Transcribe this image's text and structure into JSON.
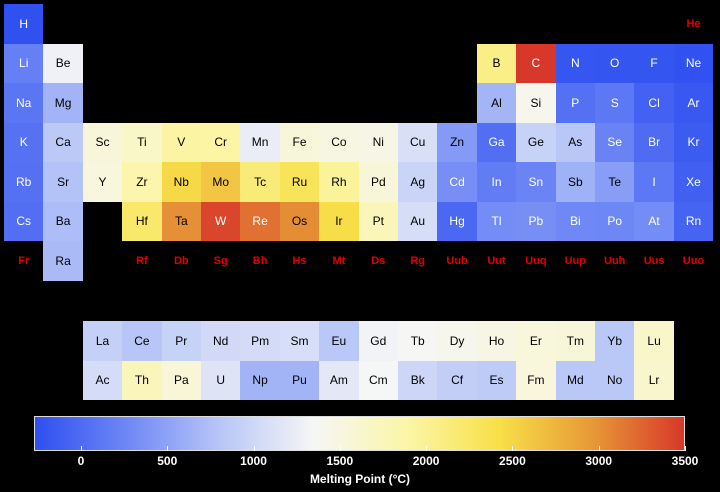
{
  "chart_data": {
    "type": "heatmap",
    "title": "",
    "colorbar": {
      "label": "Melting Point (°C)",
      "range": [
        -272,
        3500
      ],
      "ticks": [
        0,
        500,
        1000,
        1500,
        2000,
        2500,
        3000,
        3500
      ],
      "colors": [
        "#2e4ff0",
        "#6f88f5",
        "#b8c6f7",
        "#f6f6f6",
        "#fbf6a8",
        "#f8e049",
        "#e79a37",
        "#d7382a"
      ]
    },
    "no_data_color": "#e00000",
    "elements": [
      {
        "symbol": "H",
        "row": 1,
        "col": 1,
        "value": -259
      },
      {
        "symbol": "He",
        "row": 1,
        "col": 18,
        "value": null
      },
      {
        "symbol": "Li",
        "row": 2,
        "col": 1,
        "value": 181
      },
      {
        "symbol": "Be",
        "row": 2,
        "col": 2,
        "value": 1287
      },
      {
        "symbol": "B",
        "row": 2,
        "col": 13,
        "value": 2076
      },
      {
        "symbol": "C",
        "row": 2,
        "col": 14,
        "value": 3500
      },
      {
        "symbol": "N",
        "row": 2,
        "col": 15,
        "value": -210
      },
      {
        "symbol": "O",
        "row": 2,
        "col": 16,
        "value": -218
      },
      {
        "symbol": "F",
        "row": 2,
        "col": 17,
        "value": -220
      },
      {
        "symbol": "Ne",
        "row": 2,
        "col": 18,
        "value": -249
      },
      {
        "symbol": "Na",
        "row": 3,
        "col": 1,
        "value": 98
      },
      {
        "symbol": "Mg",
        "row": 3,
        "col": 2,
        "value": 650
      },
      {
        "symbol": "Al",
        "row": 3,
        "col": 13,
        "value": 660
      },
      {
        "symbol": "Si",
        "row": 3,
        "col": 14,
        "value": 1414
      },
      {
        "symbol": "P",
        "row": 3,
        "col": 15,
        "value": 44
      },
      {
        "symbol": "S",
        "row": 3,
        "col": 16,
        "value": 115
      },
      {
        "symbol": "Cl",
        "row": 3,
        "col": 17,
        "value": -102
      },
      {
        "symbol": "Ar",
        "row": 3,
        "col": 18,
        "value": -189
      },
      {
        "symbol": "K",
        "row": 4,
        "col": 1,
        "value": 63
      },
      {
        "symbol": "Ca",
        "row": 4,
        "col": 2,
        "value": 842
      },
      {
        "symbol": "Sc",
        "row": 4,
        "col": 3,
        "value": 1541
      },
      {
        "symbol": "Ti",
        "row": 4,
        "col": 4,
        "value": 1668
      },
      {
        "symbol": "V",
        "row": 4,
        "col": 5,
        "value": 1910
      },
      {
        "symbol": "Cr",
        "row": 4,
        "col": 6,
        "value": 1907
      },
      {
        "symbol": "Mn",
        "row": 4,
        "col": 7,
        "value": 1246
      },
      {
        "symbol": "Fe",
        "row": 4,
        "col": 8,
        "value": 1538
      },
      {
        "symbol": "Co",
        "row": 4,
        "col": 9,
        "value": 1495
      },
      {
        "symbol": "Ni",
        "row": 4,
        "col": 10,
        "value": 1455
      },
      {
        "symbol": "Cu",
        "row": 4,
        "col": 11,
        "value": 1085
      },
      {
        "symbol": "Zn",
        "row": 4,
        "col": 12,
        "value": 420
      },
      {
        "symbol": "Ga",
        "row": 4,
        "col": 13,
        "value": 30
      },
      {
        "symbol": "Ge",
        "row": 4,
        "col": 14,
        "value": 938
      },
      {
        "symbol": "As",
        "row": 4,
        "col": 15,
        "value": 817
      },
      {
        "symbol": "Se",
        "row": 4,
        "col": 16,
        "value": 221
      },
      {
        "symbol": "Br",
        "row": 4,
        "col": 17,
        "value": -7
      },
      {
        "symbol": "Kr",
        "row": 4,
        "col": 18,
        "value": -157
      },
      {
        "symbol": "Rb",
        "row": 5,
        "col": 1,
        "value": 39
      },
      {
        "symbol": "Sr",
        "row": 5,
        "col": 2,
        "value": 777
      },
      {
        "symbol": "Y",
        "row": 5,
        "col": 3,
        "value": 1526
      },
      {
        "symbol": "Zr",
        "row": 5,
        "col": 4,
        "value": 1855
      },
      {
        "symbol": "Nb",
        "row": 5,
        "col": 5,
        "value": 2477
      },
      {
        "symbol": "Mo",
        "row": 5,
        "col": 6,
        "value": 2623
      },
      {
        "symbol": "Tc",
        "row": 5,
        "col": 7,
        "value": 2157
      },
      {
        "symbol": "Ru",
        "row": 5,
        "col": 8,
        "value": 2334
      },
      {
        "symbol": "Rh",
        "row": 5,
        "col": 9,
        "value": 1964
      },
      {
        "symbol": "Pd",
        "row": 5,
        "col": 10,
        "value": 1555
      },
      {
        "symbol": "Ag",
        "row": 5,
        "col": 11,
        "value": 962
      },
      {
        "symbol": "Cd",
        "row": 5,
        "col": 12,
        "value": 321
      },
      {
        "symbol": "In",
        "row": 5,
        "col": 13,
        "value": 157
      },
      {
        "symbol": "Sn",
        "row": 5,
        "col": 14,
        "value": 232
      },
      {
        "symbol": "Sb",
        "row": 5,
        "col": 15,
        "value": 631
      },
      {
        "symbol": "Te",
        "row": 5,
        "col": 16,
        "value": 450
      },
      {
        "symbol": "I",
        "row": 5,
        "col": 17,
        "value": 114
      },
      {
        "symbol": "Xe",
        "row": 5,
        "col": 18,
        "value": -112
      },
      {
        "symbol": "Cs",
        "row": 6,
        "col": 1,
        "value": 28
      },
      {
        "symbol": "Ba",
        "row": 6,
        "col": 2,
        "value": 727
      },
      {
        "symbol": "Hf",
        "row": 6,
        "col": 4,
        "value": 2233
      },
      {
        "symbol": "Ta",
        "row": 6,
        "col": 5,
        "value": 3017
      },
      {
        "symbol": "W",
        "row": 6,
        "col": 6,
        "value": 3422
      },
      {
        "symbol": "Re",
        "row": 6,
        "col": 7,
        "value": 3186
      },
      {
        "symbol": "Os",
        "row": 6,
        "col": 8,
        "value": 3033
      },
      {
        "symbol": "Ir",
        "row": 6,
        "col": 9,
        "value": 2446
      },
      {
        "symbol": "Pt",
        "row": 6,
        "col": 10,
        "value": 1768
      },
      {
        "symbol": "Au",
        "row": 6,
        "col": 11,
        "value": 1064
      },
      {
        "symbol": "Hg",
        "row": 6,
        "col": 12,
        "value": -39
      },
      {
        "symbol": "Tl",
        "row": 6,
        "col": 13,
        "value": 304
      },
      {
        "symbol": "Pb",
        "row": 6,
        "col": 14,
        "value": 327
      },
      {
        "symbol": "Bi",
        "row": 6,
        "col": 15,
        "value": 271
      },
      {
        "symbol": "Po",
        "row": 6,
        "col": 16,
        "value": 254
      },
      {
        "symbol": "At",
        "row": 6,
        "col": 17,
        "value": 302
      },
      {
        "symbol": "Rn",
        "row": 6,
        "col": 18,
        "value": -71
      },
      {
        "symbol": "Fr",
        "row": 7,
        "col": 1,
        "value": null
      },
      {
        "symbol": "Ra",
        "row": 7,
        "col": 2,
        "value": 700
      },
      {
        "symbol": "Rf",
        "row": 7,
        "col": 4,
        "value": null
      },
      {
        "symbol": "Db",
        "row": 7,
        "col": 5,
        "value": null
      },
      {
        "symbol": "Sg",
        "row": 7,
        "col": 6,
        "value": null
      },
      {
        "symbol": "Bh",
        "row": 7,
        "col": 7,
        "value": null
      },
      {
        "symbol": "Hs",
        "row": 7,
        "col": 8,
        "value": null
      },
      {
        "symbol": "Mt",
        "row": 7,
        "col": 9,
        "value": null
      },
      {
        "symbol": "Ds",
        "row": 7,
        "col": 10,
        "value": null
      },
      {
        "symbol": "Rg",
        "row": 7,
        "col": 11,
        "value": null
      },
      {
        "symbol": "Uub",
        "row": 7,
        "col": 12,
        "value": null
      },
      {
        "symbol": "Uut",
        "row": 7,
        "col": 13,
        "value": null
      },
      {
        "symbol": "Uuq",
        "row": 7,
        "col": 14,
        "value": null
      },
      {
        "symbol": "Uup",
        "row": 7,
        "col": 15,
        "value": null
      },
      {
        "symbol": "Uuh",
        "row": 7,
        "col": 16,
        "value": null
      },
      {
        "symbol": "Uus",
        "row": 7,
        "col": 17,
        "value": null
      },
      {
        "symbol": "Uuo",
        "row": 7,
        "col": 18,
        "value": null
      },
      {
        "symbol": "La",
        "row": 8,
        "col": 3,
        "value": 920
      },
      {
        "symbol": "Ce",
        "row": 8,
        "col": 4,
        "value": 795
      },
      {
        "symbol": "Pr",
        "row": 8,
        "col": 5,
        "value": 935
      },
      {
        "symbol": "Nd",
        "row": 8,
        "col": 6,
        "value": 1024
      },
      {
        "symbol": "Pm",
        "row": 8,
        "col": 7,
        "value": 1042
      },
      {
        "symbol": "Sm",
        "row": 8,
        "col": 8,
        "value": 1072
      },
      {
        "symbol": "Eu",
        "row": 8,
        "col": 9,
        "value": 826
      },
      {
        "symbol": "Gd",
        "row": 8,
        "col": 10,
        "value": 1312
      },
      {
        "symbol": "Tb",
        "row": 8,
        "col": 11,
        "value": 1356
      },
      {
        "symbol": "Dy",
        "row": 8,
        "col": 12,
        "value": 1407
      },
      {
        "symbol": "Ho",
        "row": 8,
        "col": 13,
        "value": 1461
      },
      {
        "symbol": "Er",
        "row": 8,
        "col": 14,
        "value": 1529
      },
      {
        "symbol": "Tm",
        "row": 8,
        "col": 15,
        "value": 1545
      },
      {
        "symbol": "Yb",
        "row": 8,
        "col": 16,
        "value": 824
      },
      {
        "symbol": "Lu",
        "row": 8,
        "col": 17,
        "value": 1652
      },
      {
        "symbol": "Ac",
        "row": 9,
        "col": 3,
        "value": 1050
      },
      {
        "symbol": "Th",
        "row": 9,
        "col": 4,
        "value": 1750
      },
      {
        "symbol": "Pa",
        "row": 9,
        "col": 5,
        "value": 1568
      },
      {
        "symbol": "U",
        "row": 9,
        "col": 6,
        "value": 1132
      },
      {
        "symbol": "Np",
        "row": 9,
        "col": 7,
        "value": 644
      },
      {
        "symbol": "Pu",
        "row": 9,
        "col": 8,
        "value": 640
      },
      {
        "symbol": "Am",
        "row": 9,
        "col": 9,
        "value": 1176
      },
      {
        "symbol": "Cm",
        "row": 9,
        "col": 10,
        "value": 1340
      },
      {
        "symbol": "Bk",
        "row": 9,
        "col": 11,
        "value": 986
      },
      {
        "symbol": "Cf",
        "row": 9,
        "col": 12,
        "value": 900
      },
      {
        "symbol": "Es",
        "row": 9,
        "col": 13,
        "value": 860
      },
      {
        "symbol": "Fm",
        "row": 9,
        "col": 14,
        "value": 1527
      },
      {
        "symbol": "Md",
        "row": 9,
        "col": 15,
        "value": 827
      },
      {
        "symbol": "No",
        "row": 9,
        "col": 16,
        "value": 827
      },
      {
        "symbol": "Lr",
        "row": 9,
        "col": 17,
        "value": 1627
      }
    ]
  }
}
